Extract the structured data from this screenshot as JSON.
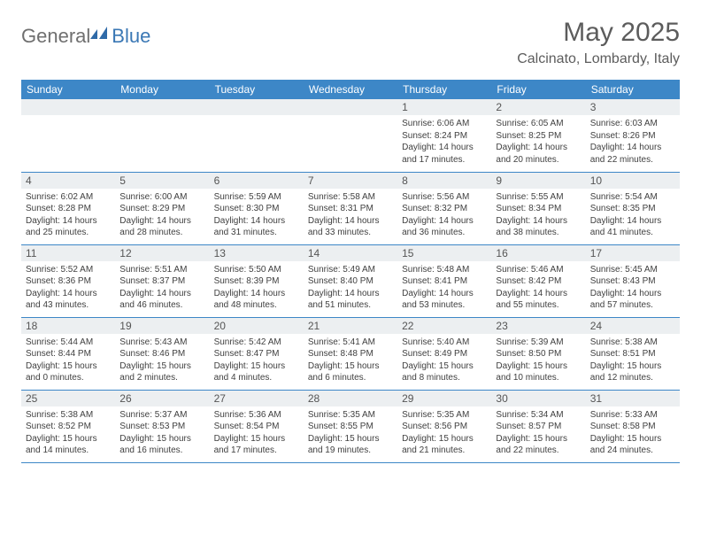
{
  "logo": {
    "part1": "General",
    "part2": "Blue"
  },
  "title": "May 2025",
  "location": "Calcinato, Lombardy, Italy",
  "colors": {
    "header_bg": "#3d87c7",
    "header_text": "#ffffff",
    "daynum_bg": "#eceff1",
    "border": "#3d87c7",
    "logo_gray": "#6f6f6f",
    "logo_blue": "#3b78b5",
    "title_color": "#5c5c5c"
  },
  "week_days": [
    "Sunday",
    "Monday",
    "Tuesday",
    "Wednesday",
    "Thursday",
    "Friday",
    "Saturday"
  ],
  "weeks": [
    [
      null,
      null,
      null,
      null,
      {
        "n": "1",
        "sr": "Sunrise: 6:06 AM",
        "ss": "Sunset: 8:24 PM",
        "dl": "Daylight: 14 hours and 17 minutes."
      },
      {
        "n": "2",
        "sr": "Sunrise: 6:05 AM",
        "ss": "Sunset: 8:25 PM",
        "dl": "Daylight: 14 hours and 20 minutes."
      },
      {
        "n": "3",
        "sr": "Sunrise: 6:03 AM",
        "ss": "Sunset: 8:26 PM",
        "dl": "Daylight: 14 hours and 22 minutes."
      }
    ],
    [
      {
        "n": "4",
        "sr": "Sunrise: 6:02 AM",
        "ss": "Sunset: 8:28 PM",
        "dl": "Daylight: 14 hours and 25 minutes."
      },
      {
        "n": "5",
        "sr": "Sunrise: 6:00 AM",
        "ss": "Sunset: 8:29 PM",
        "dl": "Daylight: 14 hours and 28 minutes."
      },
      {
        "n": "6",
        "sr": "Sunrise: 5:59 AM",
        "ss": "Sunset: 8:30 PM",
        "dl": "Daylight: 14 hours and 31 minutes."
      },
      {
        "n": "7",
        "sr": "Sunrise: 5:58 AM",
        "ss": "Sunset: 8:31 PM",
        "dl": "Daylight: 14 hours and 33 minutes."
      },
      {
        "n": "8",
        "sr": "Sunrise: 5:56 AM",
        "ss": "Sunset: 8:32 PM",
        "dl": "Daylight: 14 hours and 36 minutes."
      },
      {
        "n": "9",
        "sr": "Sunrise: 5:55 AM",
        "ss": "Sunset: 8:34 PM",
        "dl": "Daylight: 14 hours and 38 minutes."
      },
      {
        "n": "10",
        "sr": "Sunrise: 5:54 AM",
        "ss": "Sunset: 8:35 PM",
        "dl": "Daylight: 14 hours and 41 minutes."
      }
    ],
    [
      {
        "n": "11",
        "sr": "Sunrise: 5:52 AM",
        "ss": "Sunset: 8:36 PM",
        "dl": "Daylight: 14 hours and 43 minutes."
      },
      {
        "n": "12",
        "sr": "Sunrise: 5:51 AM",
        "ss": "Sunset: 8:37 PM",
        "dl": "Daylight: 14 hours and 46 minutes."
      },
      {
        "n": "13",
        "sr": "Sunrise: 5:50 AM",
        "ss": "Sunset: 8:39 PM",
        "dl": "Daylight: 14 hours and 48 minutes."
      },
      {
        "n": "14",
        "sr": "Sunrise: 5:49 AM",
        "ss": "Sunset: 8:40 PM",
        "dl": "Daylight: 14 hours and 51 minutes."
      },
      {
        "n": "15",
        "sr": "Sunrise: 5:48 AM",
        "ss": "Sunset: 8:41 PM",
        "dl": "Daylight: 14 hours and 53 minutes."
      },
      {
        "n": "16",
        "sr": "Sunrise: 5:46 AM",
        "ss": "Sunset: 8:42 PM",
        "dl": "Daylight: 14 hours and 55 minutes."
      },
      {
        "n": "17",
        "sr": "Sunrise: 5:45 AM",
        "ss": "Sunset: 8:43 PM",
        "dl": "Daylight: 14 hours and 57 minutes."
      }
    ],
    [
      {
        "n": "18",
        "sr": "Sunrise: 5:44 AM",
        "ss": "Sunset: 8:44 PM",
        "dl": "Daylight: 15 hours and 0 minutes."
      },
      {
        "n": "19",
        "sr": "Sunrise: 5:43 AM",
        "ss": "Sunset: 8:46 PM",
        "dl": "Daylight: 15 hours and 2 minutes."
      },
      {
        "n": "20",
        "sr": "Sunrise: 5:42 AM",
        "ss": "Sunset: 8:47 PM",
        "dl": "Daylight: 15 hours and 4 minutes."
      },
      {
        "n": "21",
        "sr": "Sunrise: 5:41 AM",
        "ss": "Sunset: 8:48 PM",
        "dl": "Daylight: 15 hours and 6 minutes."
      },
      {
        "n": "22",
        "sr": "Sunrise: 5:40 AM",
        "ss": "Sunset: 8:49 PM",
        "dl": "Daylight: 15 hours and 8 minutes."
      },
      {
        "n": "23",
        "sr": "Sunrise: 5:39 AM",
        "ss": "Sunset: 8:50 PM",
        "dl": "Daylight: 15 hours and 10 minutes."
      },
      {
        "n": "24",
        "sr": "Sunrise: 5:38 AM",
        "ss": "Sunset: 8:51 PM",
        "dl": "Daylight: 15 hours and 12 minutes."
      }
    ],
    [
      {
        "n": "25",
        "sr": "Sunrise: 5:38 AM",
        "ss": "Sunset: 8:52 PM",
        "dl": "Daylight: 15 hours and 14 minutes."
      },
      {
        "n": "26",
        "sr": "Sunrise: 5:37 AM",
        "ss": "Sunset: 8:53 PM",
        "dl": "Daylight: 15 hours and 16 minutes."
      },
      {
        "n": "27",
        "sr": "Sunrise: 5:36 AM",
        "ss": "Sunset: 8:54 PM",
        "dl": "Daylight: 15 hours and 17 minutes."
      },
      {
        "n": "28",
        "sr": "Sunrise: 5:35 AM",
        "ss": "Sunset: 8:55 PM",
        "dl": "Daylight: 15 hours and 19 minutes."
      },
      {
        "n": "29",
        "sr": "Sunrise: 5:35 AM",
        "ss": "Sunset: 8:56 PM",
        "dl": "Daylight: 15 hours and 21 minutes."
      },
      {
        "n": "30",
        "sr": "Sunrise: 5:34 AM",
        "ss": "Sunset: 8:57 PM",
        "dl": "Daylight: 15 hours and 22 minutes."
      },
      {
        "n": "31",
        "sr": "Sunrise: 5:33 AM",
        "ss": "Sunset: 8:58 PM",
        "dl": "Daylight: 15 hours and 24 minutes."
      }
    ]
  ]
}
